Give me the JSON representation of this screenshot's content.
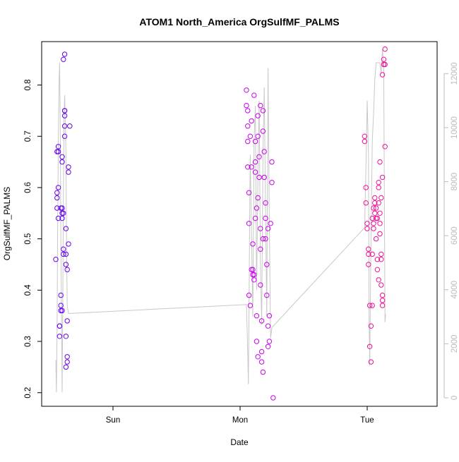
{
  "chart_data": {
    "type": "scatter",
    "title": "ATOM1 North_America OrgSulfMF_PALMS",
    "xlabel": "Date",
    "ylabel": "OrgSulfMF_PALMS",
    "x_ticks": [
      "Sun",
      "Mon",
      "Tue"
    ],
    "x_tick_positions": [
      0.5,
      1.5,
      2.5
    ],
    "xlim": [
      0.0,
      3.0
    ],
    "ylim": [
      0.19,
      0.875
    ],
    "y_ticks": [
      0.2,
      0.3,
      0.4,
      0.5,
      0.6,
      0.7,
      0.8
    ],
    "y2_ticks": [
      0,
      2000,
      4000,
      6000,
      8000,
      10000,
      12000
    ],
    "y2lim": [
      0,
      13000
    ],
    "colors": {
      "early": "#6600ee",
      "mid": "#cc00ee",
      "late": "#ee1199",
      "altitude_line": "#c8c8c8"
    },
    "series": [
      {
        "values": [
          [
            0.05,
            0.46
          ],
          [
            0.06,
            0.58
          ],
          [
            0.06,
            0.59
          ],
          [
            0.06,
            0.56
          ],
          [
            0.06,
            0.67
          ],
          [
            0.07,
            0.68
          ],
          [
            0.07,
            0.67
          ],
          [
            0.07,
            0.6
          ],
          [
            0.07,
            0.54
          ],
          [
            0.08,
            0.33
          ],
          [
            0.08,
            0.31
          ],
          [
            0.08,
            0.33
          ],
          [
            0.09,
            0.36
          ],
          [
            0.09,
            0.39
          ],
          [
            0.09,
            0.37
          ],
          [
            0.1,
            0.56
          ],
          [
            0.1,
            0.55
          ],
          [
            0.1,
            0.54
          ],
          [
            0.1,
            0.66
          ],
          [
            0.1,
            0.65
          ],
          [
            0.11,
            0.48
          ],
          [
            0.11,
            0.47
          ],
          [
            0.11,
            0.85
          ],
          [
            0.12,
            0.86
          ],
          [
            0.12,
            0.75
          ],
          [
            0.12,
            0.74
          ],
          [
            0.12,
            0.72
          ],
          [
            0.13,
            0.52
          ],
          [
            0.13,
            0.47
          ],
          [
            0.13,
            0.45
          ],
          [
            0.13,
            0.31
          ],
          [
            0.13,
            0.25
          ],
          [
            0.14,
            0.27
          ],
          [
            0.14,
            0.26
          ],
          [
            0.14,
            0.34
          ],
          [
            0.14,
            0.44
          ],
          [
            0.15,
            0.49
          ],
          [
            0.15,
            0.64
          ],
          [
            0.15,
            0.63
          ],
          [
            0.16,
            0.72
          ],
          [
            0.12,
            0.7
          ],
          [
            0.11,
            0.55
          ],
          [
            0.09,
            0.56
          ],
          [
            0.1,
            0.36
          ],
          [
            0.12,
            0.75
          ]
        ]
      },
      {
        "values": [
          [
            1.55,
            0.79
          ],
          [
            1.55,
            0.76
          ],
          [
            1.56,
            0.75
          ],
          [
            1.56,
            0.72
          ],
          [
            1.56,
            0.69
          ],
          [
            1.56,
            0.64
          ],
          [
            1.57,
            0.59
          ],
          [
            1.57,
            0.53
          ],
          [
            1.57,
            0.39
          ],
          [
            1.58,
            0.37
          ],
          [
            1.58,
            0.7
          ],
          [
            1.59,
            0.73
          ],
          [
            1.59,
            0.64
          ],
          [
            1.6,
            0.49
          ],
          [
            1.6,
            0.44
          ],
          [
            1.61,
            0.43
          ],
          [
            1.61,
            0.42
          ],
          [
            1.61,
            0.78
          ],
          [
            1.62,
            0.69
          ],
          [
            1.62,
            0.65
          ],
          [
            1.62,
            0.63
          ],
          [
            1.63,
            0.56
          ],
          [
            1.63,
            0.35
          ],
          [
            1.63,
            0.3
          ],
          [
            1.64,
            0.27
          ],
          [
            1.64,
            0.74
          ],
          [
            1.64,
            0.7
          ],
          [
            1.65,
            0.66
          ],
          [
            1.65,
            0.62
          ],
          [
            1.66,
            0.52
          ],
          [
            1.66,
            0.48
          ],
          [
            1.66,
            0.41
          ],
          [
            1.67,
            0.34
          ],
          [
            1.67,
            0.28
          ],
          [
            1.67,
            0.26
          ],
          [
            1.68,
            0.24
          ],
          [
            1.68,
            0.75
          ],
          [
            1.68,
            0.71
          ],
          [
            1.69,
            0.67
          ],
          [
            1.69,
            0.62
          ],
          [
            1.7,
            0.57
          ],
          [
            1.7,
            0.54
          ],
          [
            1.7,
            0.5
          ],
          [
            1.71,
            0.45
          ],
          [
            1.71,
            0.39
          ],
          [
            1.72,
            0.33
          ],
          [
            1.72,
            0.29
          ],
          [
            1.73,
            0.3
          ],
          [
            1.73,
            0.35
          ],
          [
            1.74,
            0.53
          ],
          [
            1.75,
            0.65
          ],
          [
            1.75,
            0.61
          ],
          [
            1.76,
            0.19
          ],
          [
            1.62,
            0.54
          ],
          [
            1.66,
            0.76
          ],
          [
            1.72,
            0.52
          ],
          [
            1.59,
            0.44
          ],
          [
            1.68,
            0.5
          ],
          [
            1.64,
            0.58
          ],
          [
            1.6,
            0.43
          ]
        ]
      },
      {
        "values": [
          [
            2.48,
            0.69
          ],
          [
            2.48,
            0.7
          ],
          [
            2.49,
            0.6
          ],
          [
            2.49,
            0.57
          ],
          [
            2.5,
            0.53
          ],
          [
            2.5,
            0.52
          ],
          [
            2.51,
            0.48
          ],
          [
            2.51,
            0.47
          ],
          [
            2.51,
            0.45
          ],
          [
            2.52,
            0.37
          ],
          [
            2.52,
            0.29
          ],
          [
            2.53,
            0.26
          ],
          [
            2.53,
            0.33
          ],
          [
            2.54,
            0.37
          ],
          [
            2.54,
            0.47
          ],
          [
            2.55,
            0.52
          ],
          [
            2.55,
            0.56
          ],
          [
            2.56,
            0.57
          ],
          [
            2.56,
            0.55
          ],
          [
            2.57,
            0.54
          ],
          [
            2.57,
            0.5
          ],
          [
            2.58,
            0.46
          ],
          [
            2.58,
            0.44
          ],
          [
            2.59,
            0.61
          ],
          [
            2.59,
            0.6
          ],
          [
            2.59,
            0.57
          ],
          [
            2.6,
            0.53
          ],
          [
            2.6,
            0.51
          ],
          [
            2.61,
            0.47
          ],
          [
            2.61,
            0.46
          ],
          [
            2.61,
            0.41
          ],
          [
            2.62,
            0.39
          ],
          [
            2.62,
            0.38
          ],
          [
            2.62,
            0.37
          ],
          [
            2.62,
            0.82
          ],
          [
            2.63,
            0.84
          ],
          [
            2.63,
            0.85
          ],
          [
            2.64,
            0.87
          ],
          [
            2.64,
            0.84
          ],
          [
            2.64,
            0.68
          ],
          [
            2.62,
            0.62
          ],
          [
            2.6,
            0.65
          ],
          [
            2.57,
            0.56
          ],
          [
            2.55,
            0.53
          ],
          [
            2.56,
            0.58
          ],
          [
            2.58,
            0.54
          ],
          [
            2.6,
            0.55
          ],
          [
            2.59,
            0.42
          ],
          [
            2.61,
            0.58
          ],
          [
            2.54,
            0.54
          ]
        ]
      }
    ],
    "altitude_line": {
      "values": [
        [
          0.05,
          1400
        ],
        [
          0.055,
          200
        ],
        [
          0.06,
          2500
        ],
        [
          0.065,
          6500
        ],
        [
          0.07,
          9500
        ],
        [
          0.075,
          11500
        ],
        [
          0.08,
          12400
        ],
        [
          0.085,
          10000
        ],
        [
          0.09,
          6000
        ],
        [
          0.095,
          3000
        ],
        [
          0.1,
          200
        ],
        [
          0.105,
          3500
        ],
        [
          0.11,
          7500
        ],
        [
          0.115,
          10500
        ],
        [
          0.12,
          11200
        ],
        [
          0.13,
          9000
        ],
        [
          0.135,
          5500
        ],
        [
          0.14,
          3400
        ],
        [
          0.15,
          3120
        ],
        [
          1.55,
          3450
        ],
        [
          1.56,
          1700
        ],
        [
          1.565,
          500
        ],
        [
          1.57,
          3000
        ],
        [
          1.575,
          6500
        ],
        [
          1.58,
          9000
        ],
        [
          1.59,
          6000
        ],
        [
          1.6,
          3000
        ],
        [
          1.61,
          9500
        ],
        [
          1.62,
          10800
        ],
        [
          1.63,
          4000
        ],
        [
          1.64,
          8000
        ],
        [
          1.65,
          11000
        ],
        [
          1.66,
          5000
        ],
        [
          1.67,
          2700
        ],
        [
          1.68,
          9000
        ],
        [
          1.69,
          11500
        ],
        [
          1.7,
          7000
        ],
        [
          1.71,
          3000
        ],
        [
          1.72,
          12200
        ],
        [
          1.73,
          6500
        ],
        [
          1.74,
          2200
        ],
        [
          1.75,
          2600
        ],
        [
          2.48,
          6300
        ],
        [
          2.49,
          8500
        ],
        [
          2.5,
          11000
        ],
        [
          2.51,
          9000
        ],
        [
          2.515,
          3000
        ],
        [
          2.52,
          1200
        ],
        [
          2.53,
          6000
        ],
        [
          2.54,
          9500
        ],
        [
          2.55,
          10500
        ],
        [
          2.56,
          11800
        ],
        [
          2.57,
          12400
        ],
        [
          2.6,
          12400
        ],
        [
          2.61,
          12000
        ],
        [
          2.62,
          12900
        ],
        [
          2.63,
          12200
        ],
        [
          2.64,
          2800
        ],
        [
          2.645,
          3100
        ]
      ]
    }
  }
}
